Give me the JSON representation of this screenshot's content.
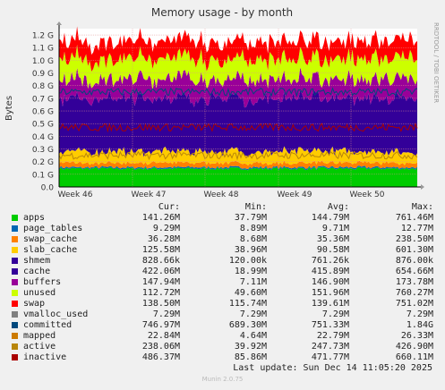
{
  "chart_data": {
    "type": "area",
    "title": "Memory usage - by month",
    "ylabel": "Bytes",
    "side_label": "RRDTOOL / TOBI OETIKER",
    "ylim": [
      0,
      1.25
    ],
    "y_unit": "G",
    "y_ticks": [
      "0.0",
      "0.1 G",
      "0.2 G",
      "0.3 G",
      "0.4 G",
      "0.5 G",
      "0.6 G",
      "0.7 G",
      "0.8 G",
      "0.9 G",
      "1.0 G",
      "1.1 G",
      "1.2 G"
    ],
    "x_ticks": [
      "Week 46",
      "Week 47",
      "Week 48",
      "Week 49",
      "Week 50"
    ],
    "grid": true,
    "stacked_series": [
      {
        "name": "apps",
        "color": "#00cc00",
        "avg": 0.145
      },
      {
        "name": "page_tables",
        "color": "#0066b3",
        "avg": 0.0097
      },
      {
        "name": "swap_cache",
        "color": "#ff8000",
        "avg": 0.035
      },
      {
        "name": "slab_cache",
        "color": "#ffcc00",
        "avg": 0.09
      },
      {
        "name": "cache",
        "color": "#330099",
        "avg": 0.42
      },
      {
        "name": "buffers",
        "color": "#990099",
        "avg": 0.15
      },
      {
        "name": "unused",
        "color": "#ccff00",
        "avg": 0.16
      },
      {
        "name": "swap",
        "color": "#ff0000",
        "avg": 0.14
      }
    ],
    "line_series": [
      {
        "name": "committed",
        "color": "#00487d",
        "avg": 0.75
      },
      {
        "name": "active",
        "color": "#b8860b",
        "avg": 0.25
      },
      {
        "name": "inactive",
        "color": "#aa0000",
        "avg": 0.47
      }
    ]
  },
  "legend": {
    "headers": {
      "cur": "Cur:",
      "min": "Min:",
      "avg": "Avg:",
      "max": "Max:"
    },
    "rows": [
      {
        "name": "apps",
        "color": "#00cc00",
        "cur": "141.26M",
        "min": "37.79M",
        "avg": "144.79M",
        "max": "761.46M"
      },
      {
        "name": "page_tables",
        "color": "#0066b3",
        "cur": "9.29M",
        "min": "8.89M",
        "avg": "9.71M",
        "max": "12.77M"
      },
      {
        "name": "swap_cache",
        "color": "#ff8000",
        "cur": "36.28M",
        "min": "8.68M",
        "avg": "35.36M",
        "max": "238.50M"
      },
      {
        "name": "slab_cache",
        "color": "#ffcc00",
        "cur": "125.58M",
        "min": "38.96M",
        "avg": "90.58M",
        "max": "601.30M"
      },
      {
        "name": "shmem",
        "color": "#330099",
        "cur": "828.66k",
        "min": "120.00k",
        "avg": "761.26k",
        "max": "876.00k"
      },
      {
        "name": "cache",
        "color": "#330099",
        "cur": "422.06M",
        "min": "18.99M",
        "avg": "415.89M",
        "max": "654.66M"
      },
      {
        "name": "buffers",
        "color": "#990099",
        "cur": "147.94M",
        "min": "7.11M",
        "avg": "146.90M",
        "max": "173.78M"
      },
      {
        "name": "unused",
        "color": "#ccff00",
        "cur": "112.72M",
        "min": "49.60M",
        "avg": "151.96M",
        "max": "760.27M"
      },
      {
        "name": "swap",
        "color": "#ff0000",
        "cur": "138.50M",
        "min": "115.74M",
        "avg": "139.61M",
        "max": "751.02M"
      },
      {
        "name": "vmalloc_used",
        "color": "#808080",
        "cur": "7.29M",
        "min": "7.29M",
        "avg": "7.29M",
        "max": "7.29M"
      },
      {
        "name": "committed",
        "color": "#00487d",
        "cur": "746.97M",
        "min": "689.30M",
        "avg": "751.33M",
        "max": "1.84G"
      },
      {
        "name": "mapped",
        "color": "#cc7a00",
        "cur": "22.84M",
        "min": "4.64M",
        "avg": "22.79M",
        "max": "26.33M"
      },
      {
        "name": "active",
        "color": "#b8860b",
        "cur": "238.06M",
        "min": "39.92M",
        "avg": "247.73M",
        "max": "426.90M"
      },
      {
        "name": "inactive",
        "color": "#aa0000",
        "cur": "486.37M",
        "min": "85.86M",
        "avg": "471.77M",
        "max": "660.11M"
      }
    ]
  },
  "footer": {
    "last_update": "Last update: Sun Dec 14 11:05:20 2025",
    "munin_version": "Munin 2.0.75"
  }
}
